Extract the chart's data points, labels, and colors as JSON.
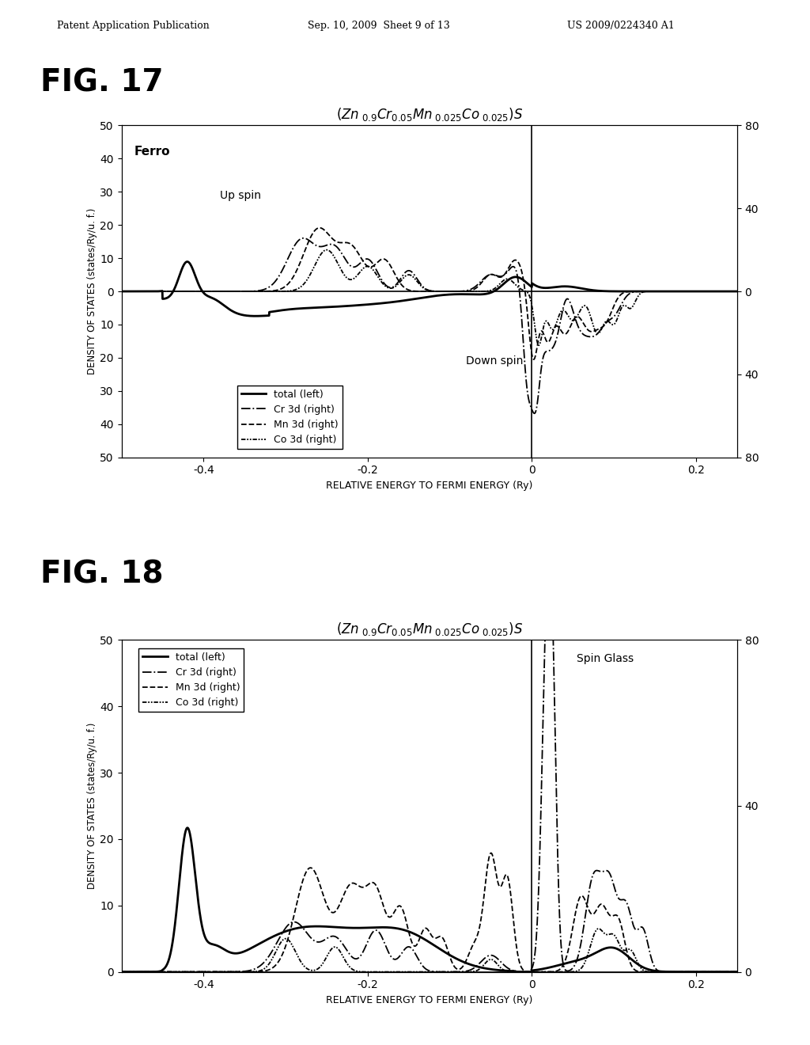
{
  "fig17": {
    "title": "FIG. 17",
    "ylabel_left": "DENSITY OF STATES (states/Ry/u. f.)",
    "xlabel": "RELATIVE ENERGY TO FERMI ENERGY (Ry)",
    "ylim_left": [
      -50,
      50
    ],
    "ylim_right": [
      -80,
      80
    ],
    "xlim": [
      -0.5,
      0.25
    ],
    "xticks": [
      -0.4,
      -0.2,
      0,
      0.2
    ],
    "yticks_left": [
      -50,
      -40,
      -30,
      -20,
      -10,
      0,
      10,
      20,
      30,
      40,
      50
    ],
    "yticks_right": [
      -80,
      -40,
      0,
      40,
      80
    ]
  },
  "fig18": {
    "title": "FIG. 18",
    "ylabel_left": "DENSITY OF STATES (states/Ry/u. f.)",
    "xlabel": "RELATIVE ENERGY TO FERMI ENERGY (Ry)",
    "ylim_left": [
      0,
      50
    ],
    "ylim_right": [
      0,
      80
    ],
    "xlim": [
      -0.5,
      0.25
    ],
    "xticks": [
      -0.4,
      -0.2,
      0,
      0.2
    ],
    "yticks_left": [
      0,
      10,
      20,
      30,
      40,
      50
    ],
    "yticks_right": [
      0,
      40,
      80
    ]
  },
  "legend_entries": [
    "total (left)",
    "Cr 3d (right)",
    "Mn 3d (right)",
    "Co 3d (right)"
  ],
  "header_text": "Patent Application Publication",
  "header_date": "Sep. 10, 2009  Sheet 9 of 13",
  "header_patent": "US 2009/0224340 A1"
}
